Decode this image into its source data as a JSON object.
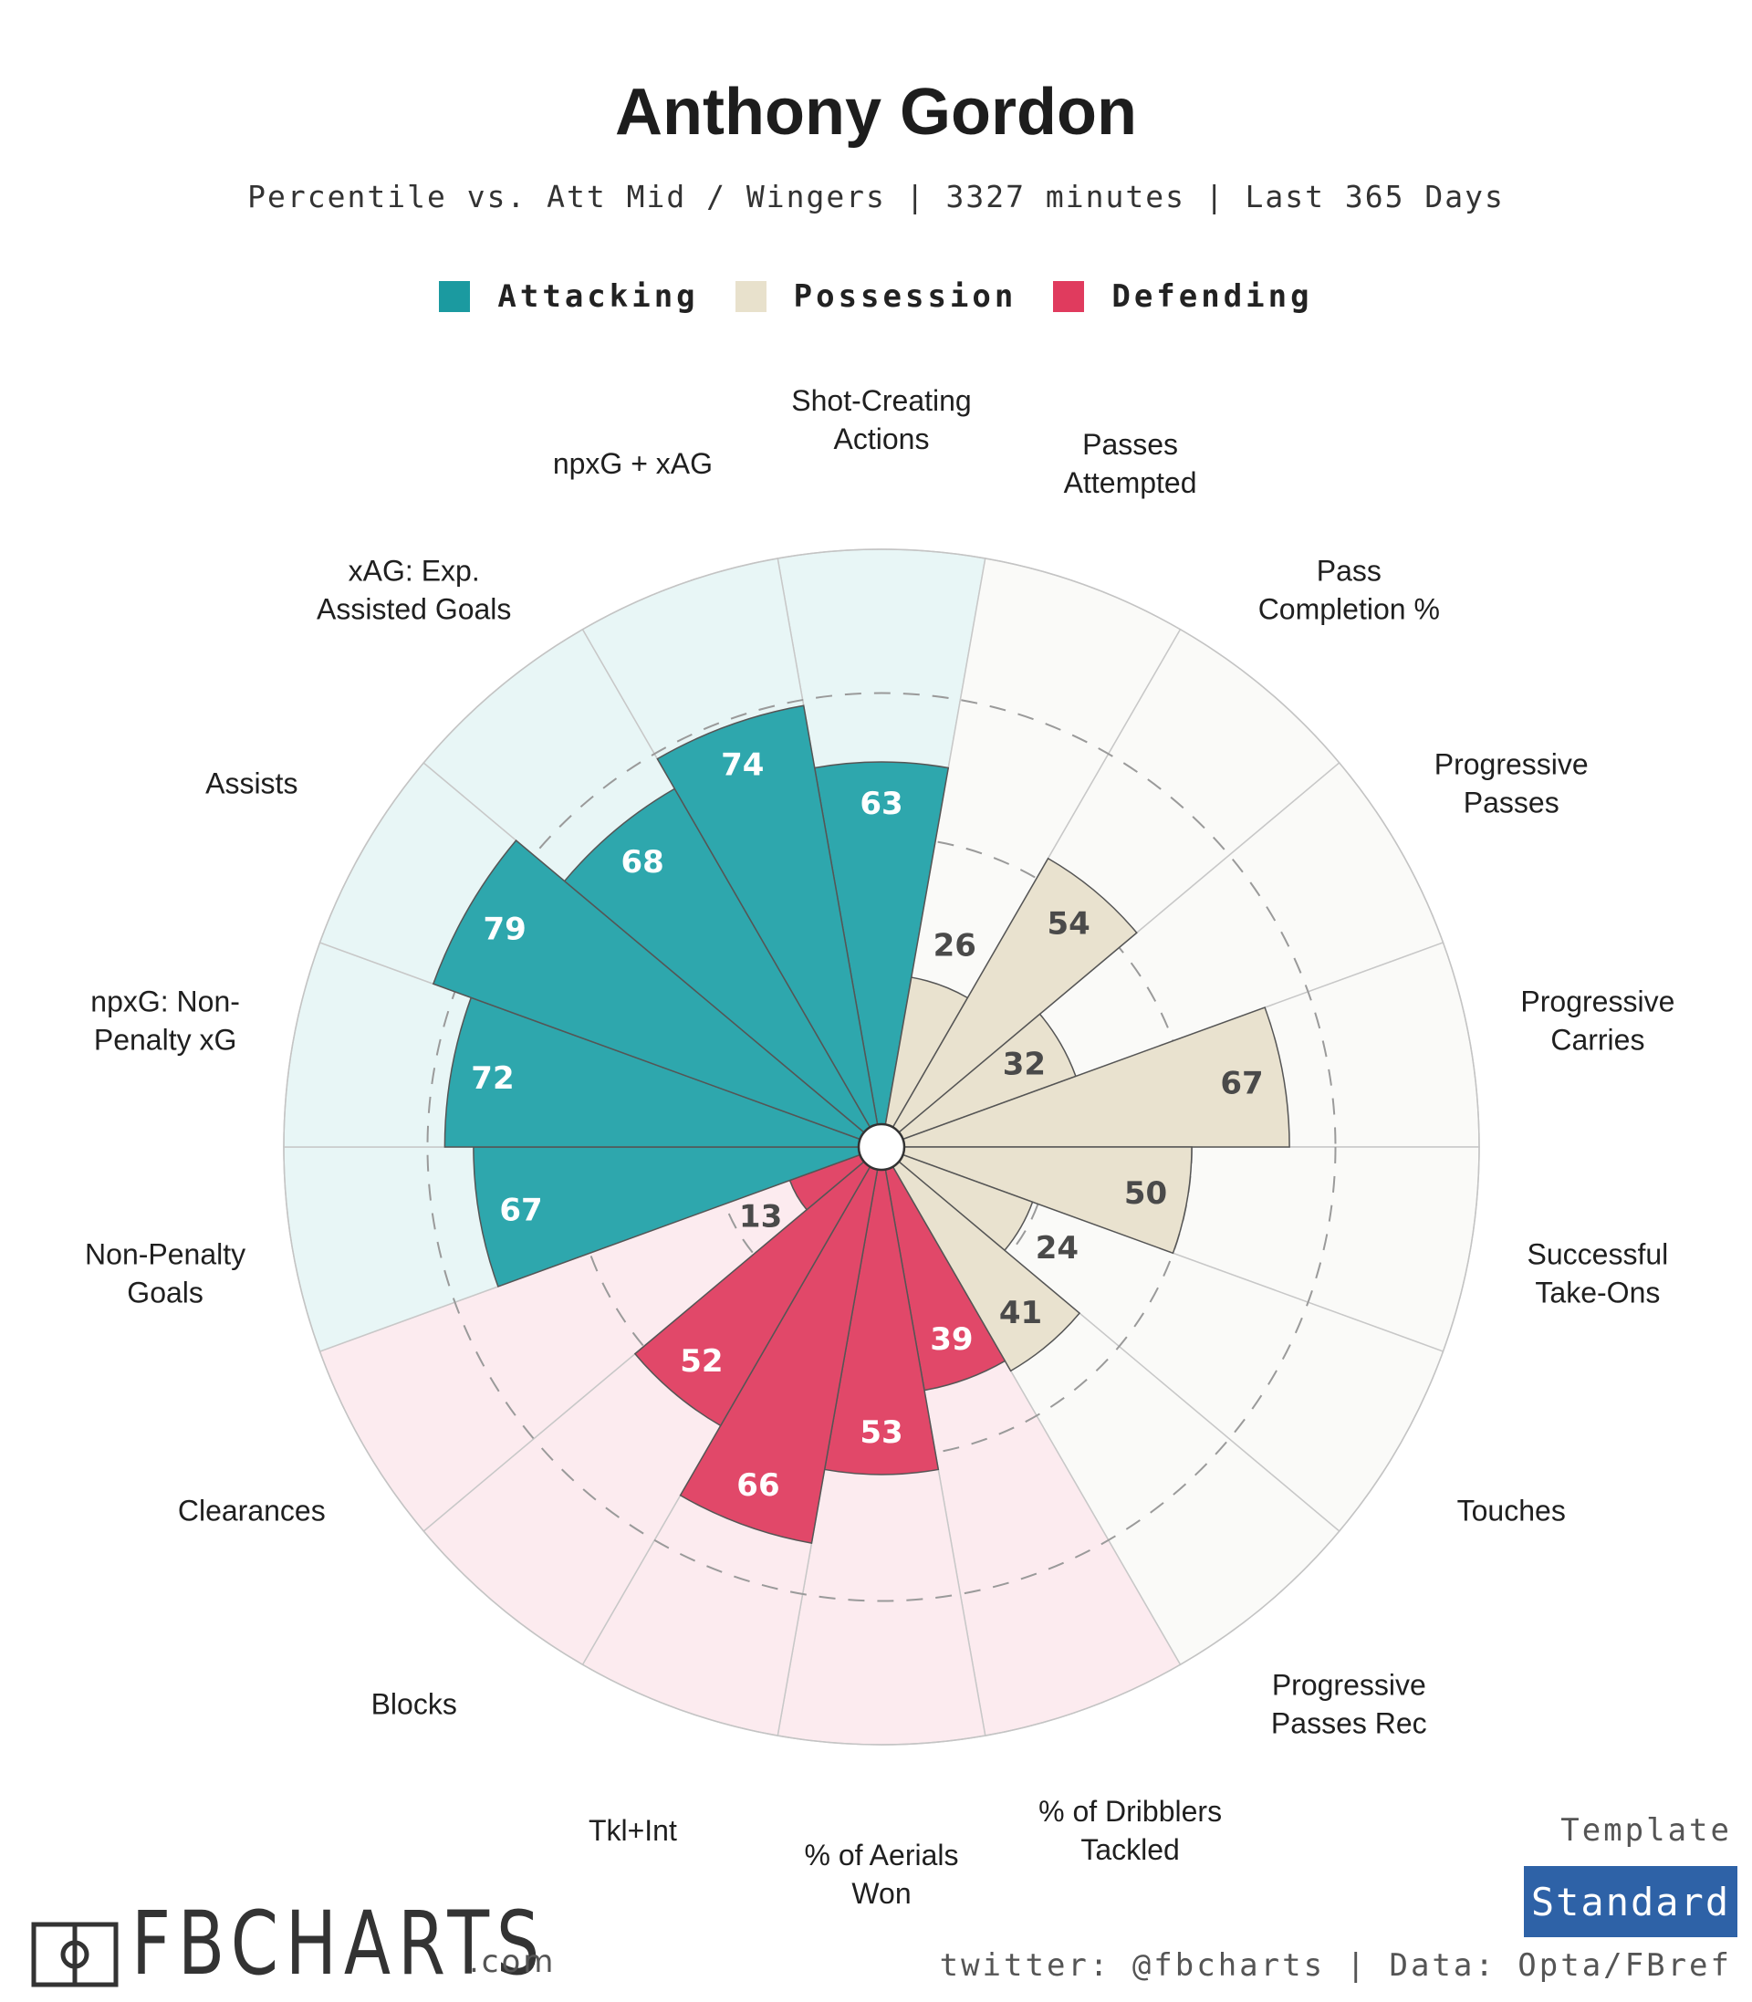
{
  "header": {
    "title": "Anthony Gordon",
    "subtitle": "Percentile vs. Att Mid / Wingers | 3327 minutes | Last 365 Days"
  },
  "legend": [
    {
      "label": "Attacking",
      "color": "#1b9aa0"
    },
    {
      "label": "Possession",
      "color": "#e8e1cc"
    },
    {
      "label": "Defending",
      "color": "#e03b5e"
    }
  ],
  "chart_data": {
    "type": "radar-bar",
    "title": "Anthony Gordon",
    "subtitle": "Percentile vs. Att Mid / Wingers | 3327 minutes | Last 365 Days",
    "range": [
      0,
      100
    ],
    "dashed_rings": [
      25,
      50,
      75
    ],
    "colors": {
      "Attacking": {
        "bar": "#2ea7ad",
        "background": "#e8f6f6"
      },
      "Possession": {
        "bar": "#e9e2cf",
        "background": "#fafaf8"
      },
      "Defending": {
        "bar": "#e14869",
        "background": "#fcebef"
      }
    },
    "categories": [
      {
        "label": "Shot-Creating\nActions",
        "value": 63,
        "group": "Attacking"
      },
      {
        "label": "Passes\nAttempted",
        "value": 26,
        "group": "Possession"
      },
      {
        "label": "Pass\nCompletion %",
        "value": 54,
        "group": "Possession"
      },
      {
        "label": "Progressive\nPasses",
        "value": 32,
        "group": "Possession"
      },
      {
        "label": "Progressive\nCarries",
        "value": 67,
        "group": "Possession"
      },
      {
        "label": "Successful\nTake-Ons",
        "value": 50,
        "group": "Possession"
      },
      {
        "label": "Touches",
        "value": 24,
        "group": "Possession"
      },
      {
        "label": "Progressive\nPasses Rec",
        "value": 41,
        "group": "Possession"
      },
      {
        "label": "% of Dribblers\nTackled",
        "value": 39,
        "group": "Defending"
      },
      {
        "label": "% of Aerials\nWon",
        "value": 53,
        "group": "Defending"
      },
      {
        "label": "Tkl+Int",
        "value": 66,
        "group": "Defending"
      },
      {
        "label": "Blocks",
        "value": 52,
        "group": "Defending"
      },
      {
        "label": "Clearances",
        "value": 13,
        "group": "Defending"
      },
      {
        "label": "Non-Penalty\nGoals",
        "value": 67,
        "group": "Attacking"
      },
      {
        "label": "npxG: Non-\nPenalty xG",
        "value": 72,
        "group": "Attacking"
      },
      {
        "label": "Assists",
        "value": 79,
        "group": "Attacking"
      },
      {
        "label": "xAG: Exp.\nAssisted Goals",
        "value": 68,
        "group": "Attacking"
      },
      {
        "label": "npxG + xAG",
        "value": 74,
        "group": "Attacking"
      }
    ]
  },
  "footer": {
    "logo_text": "FBCHARTS",
    "logo_suffix": ".com",
    "template_label": "Template",
    "template_value": "Standard",
    "credit": "twitter: @fbcharts | Data: Opta/FBref"
  }
}
